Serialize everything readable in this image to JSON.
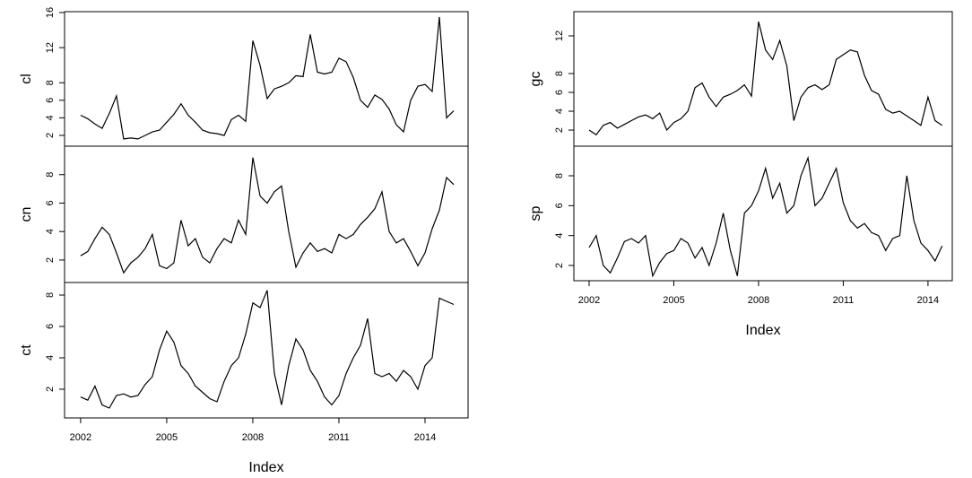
{
  "chart_data": [
    {
      "type": "line",
      "ylabel": "cl",
      "xlim": [
        2001.44,
        2015.5
      ],
      "ylim": [
        0.77,
        16.1
      ],
      "yticks": [
        2,
        4,
        6,
        8,
        12,
        16
      ],
      "x": [
        2002,
        2002.25,
        2002.5,
        2002.75,
        2003,
        2003.25,
        2003.5,
        2003.75,
        2004,
        2004.25,
        2004.5,
        2004.75,
        2005,
        2005.25,
        2005.5,
        2005.75,
        2006,
        2006.25,
        2006.5,
        2006.75,
        2007,
        2007.25,
        2007.5,
        2007.75,
        2008,
        2008.25,
        2008.5,
        2008.75,
        2009,
        2009.25,
        2009.5,
        2009.75,
        2010,
        2010.25,
        2010.5,
        2010.75,
        2011,
        2011.25,
        2011.5,
        2011.75,
        2012,
        2012.25,
        2012.5,
        2012.75,
        2013,
        2013.25,
        2013.5,
        2013.75,
        2014,
        2014.25,
        2014.5,
        2014.75,
        2015
      ],
      "values": [
        4.3,
        3.9,
        3.3,
        2.8,
        4.5,
        6.5,
        1.6,
        1.7,
        1.6,
        2.0,
        2.4,
        2.6,
        3.5,
        4.4,
        5.6,
        4.3,
        3.5,
        2.6,
        2.3,
        2.2,
        2.0,
        3.8,
        4.3,
        3.6,
        12.8,
        10.0,
        6.2,
        7.3,
        7.6,
        8.0,
        8.8,
        8.7,
        13.5,
        9.2,
        9.0,
        9.2,
        10.8,
        10.4,
        8.6,
        6.0,
        5.2,
        6.6,
        6.1,
        5.0,
        3.2,
        2.4,
        6.0,
        7.6,
        7.8,
        7.0,
        15.5,
        4.0,
        4.8
      ]
    },
    {
      "type": "line",
      "ylabel": "cn",
      "xlim": [
        2001.44,
        2015.5
      ],
      "ylim": [
        0.42,
        10.0
      ],
      "yticks": [
        2,
        4,
        6,
        8
      ],
      "x": [
        2002,
        2002.25,
        2002.5,
        2002.75,
        2003,
        2003.25,
        2003.5,
        2003.75,
        2004,
        2004.25,
        2004.5,
        2004.75,
        2005,
        2005.25,
        2005.5,
        2005.75,
        2006,
        2006.25,
        2006.5,
        2006.75,
        2007,
        2007.25,
        2007.5,
        2007.75,
        2008,
        2008.25,
        2008.5,
        2008.75,
        2009,
        2009.25,
        2009.5,
        2009.75,
        2010,
        2010.25,
        2010.5,
        2010.75,
        2011,
        2011.25,
        2011.5,
        2011.75,
        2012,
        2012.25,
        2012.5,
        2012.75,
        2013,
        2013.25,
        2013.5,
        2013.75,
        2014,
        2014.25,
        2014.5,
        2014.75,
        2015
      ],
      "values": [
        2.3,
        2.6,
        3.5,
        4.3,
        3.8,
        2.5,
        1.1,
        1.8,
        2.2,
        2.8,
        3.8,
        1.6,
        1.4,
        1.8,
        4.8,
        3.0,
        3.5,
        2.2,
        1.8,
        2.8,
        3.5,
        3.2,
        4.8,
        3.8,
        9.2,
        6.5,
        6.0,
        6.8,
        7.2,
        4.0,
        1.5,
        2.5,
        3.2,
        2.6,
        2.8,
        2.5,
        3.8,
        3.5,
        3.8,
        4.5,
        5.0,
        5.6,
        6.8,
        4.0,
        3.2,
        3.5,
        2.6,
        1.6,
        2.5,
        4.2,
        5.5,
        7.8,
        7.3
      ]
    },
    {
      "type": "line",
      "ylabel": "ct",
      "xlabel": "Index",
      "xlim": [
        2001.44,
        2015.5
      ],
      "xticks": [
        2002,
        2005,
        2008,
        2011,
        2014
      ],
      "ylim": [
        0.17,
        8.8
      ],
      "yticks": [
        2,
        4,
        6,
        8
      ],
      "x": [
        2002,
        2002.25,
        2002.5,
        2002.75,
        2003,
        2003.25,
        2003.5,
        2003.75,
        2004,
        2004.25,
        2004.5,
        2004.75,
        2005,
        2005.25,
        2005.5,
        2005.75,
        2006,
        2006.25,
        2006.5,
        2006.75,
        2007,
        2007.25,
        2007.5,
        2007.75,
        2008,
        2008.25,
        2008.5,
        2008.75,
        2009,
        2009.25,
        2009.5,
        2009.75,
        2010,
        2010.25,
        2010.5,
        2010.75,
        2011,
        2011.25,
        2011.5,
        2011.75,
        2012,
        2012.25,
        2012.5,
        2012.75,
        2013,
        2013.25,
        2013.5,
        2013.75,
        2014,
        2014.25,
        2014.5,
        2014.75,
        2015
      ],
      "values": [
        1.5,
        1.3,
        2.2,
        1.0,
        0.8,
        1.6,
        1.7,
        1.5,
        1.6,
        2.3,
        2.8,
        4.5,
        5.7,
        5.0,
        3.5,
        3.0,
        2.2,
        1.8,
        1.4,
        1.2,
        2.5,
        3.5,
        4.0,
        5.5,
        7.5,
        7.2,
        8.3,
        3.0,
        1.0,
        3.5,
        5.2,
        4.5,
        3.2,
        2.5,
        1.5,
        1.0,
        1.6,
        3.0,
        4.0,
        4.8,
        6.5,
        3.0,
        2.8,
        3.0,
        2.5,
        3.2,
        2.8,
        2.0,
        3.5,
        4.0,
        7.8,
        7.6,
        7.4
      ]
    },
    {
      "type": "line",
      "ylabel": "gc",
      "xlim": [
        2001.46,
        2014.86
      ],
      "ylim": [
        0.29,
        14.57
      ],
      "yticks": [
        2,
        4,
        6,
        8,
        12
      ],
      "x": [
        2002,
        2002.25,
        2002.5,
        2002.75,
        2003,
        2003.25,
        2003.5,
        2003.75,
        2004,
        2004.25,
        2004.5,
        2004.75,
        2005,
        2005.25,
        2005.5,
        2005.75,
        2006,
        2006.25,
        2006.5,
        2006.75,
        2007,
        2007.25,
        2007.5,
        2007.75,
        2008,
        2008.25,
        2008.5,
        2008.75,
        2009,
        2009.25,
        2009.5,
        2009.75,
        2010,
        2010.25,
        2010.5,
        2010.75,
        2011,
        2011.25,
        2011.5,
        2011.75,
        2012,
        2012.25,
        2012.5,
        2012.75,
        2013,
        2013.25,
        2013.5,
        2013.75,
        2014,
        2014.25,
        2014.5
      ],
      "values": [
        2.0,
        1.5,
        2.5,
        2.8,
        2.2,
        2.6,
        3.0,
        3.4,
        3.6,
        3.2,
        3.8,
        2.0,
        2.8,
        3.2,
        4.0,
        6.5,
        7.0,
        5.5,
        4.5,
        5.5,
        5.8,
        6.2,
        6.8,
        5.6,
        13.5,
        10.5,
        9.5,
        11.5,
        8.8,
        3.0,
        5.5,
        6.5,
        6.8,
        6.3,
        6.8,
        9.5,
        10.0,
        10.5,
        10.3,
        7.8,
        6.2,
        5.8,
        4.2,
        3.8,
        4.0,
        3.5,
        3.0,
        2.5,
        5.5,
        3.0,
        2.5
      ]
    },
    {
      "type": "line",
      "ylabel": "sp",
      "xlabel": "Index",
      "xlim": [
        2001.46,
        2014.86
      ],
      "xticks": [
        2002,
        2005,
        2008,
        2011,
        2014
      ],
      "ylim": [
        0.98,
        9.98
      ],
      "yticks": [
        2,
        4,
        6,
        8
      ],
      "x": [
        2002,
        2002.25,
        2002.5,
        2002.75,
        2003,
        2003.25,
        2003.5,
        2003.75,
        2004,
        2004.25,
        2004.5,
        2004.75,
        2005,
        2005.25,
        2005.5,
        2005.75,
        2006,
        2006.25,
        2006.5,
        2006.75,
        2007,
        2007.25,
        2007.5,
        2007.75,
        2008,
        2008.25,
        2008.5,
        2008.75,
        2009,
        2009.25,
        2009.5,
        2009.75,
        2010,
        2010.25,
        2010.5,
        2010.75,
        2011,
        2011.25,
        2011.5,
        2011.75,
        2012,
        2012.25,
        2012.5,
        2012.75,
        2013,
        2013.25,
        2013.5,
        2013.75,
        2014,
        2014.25,
        2014.5
      ],
      "values": [
        3.2,
        4.0,
        2.0,
        1.5,
        2.5,
        3.6,
        3.8,
        3.5,
        4.0,
        1.3,
        2.2,
        2.8,
        3.0,
        3.8,
        3.5,
        2.5,
        3.2,
        2.0,
        3.5,
        5.5,
        3.0,
        1.3,
        5.5,
        6.0,
        7.0,
        8.5,
        6.5,
        7.5,
        5.5,
        6.0,
        8.0,
        9.2,
        6.0,
        6.5,
        7.5,
        8.5,
        6.2,
        5.0,
        4.5,
        4.8,
        4.2,
        4.0,
        3.0,
        3.8,
        4.0,
        8.0,
        5.0,
        3.5,
        3.0,
        2.3,
        3.3
      ]
    }
  ]
}
